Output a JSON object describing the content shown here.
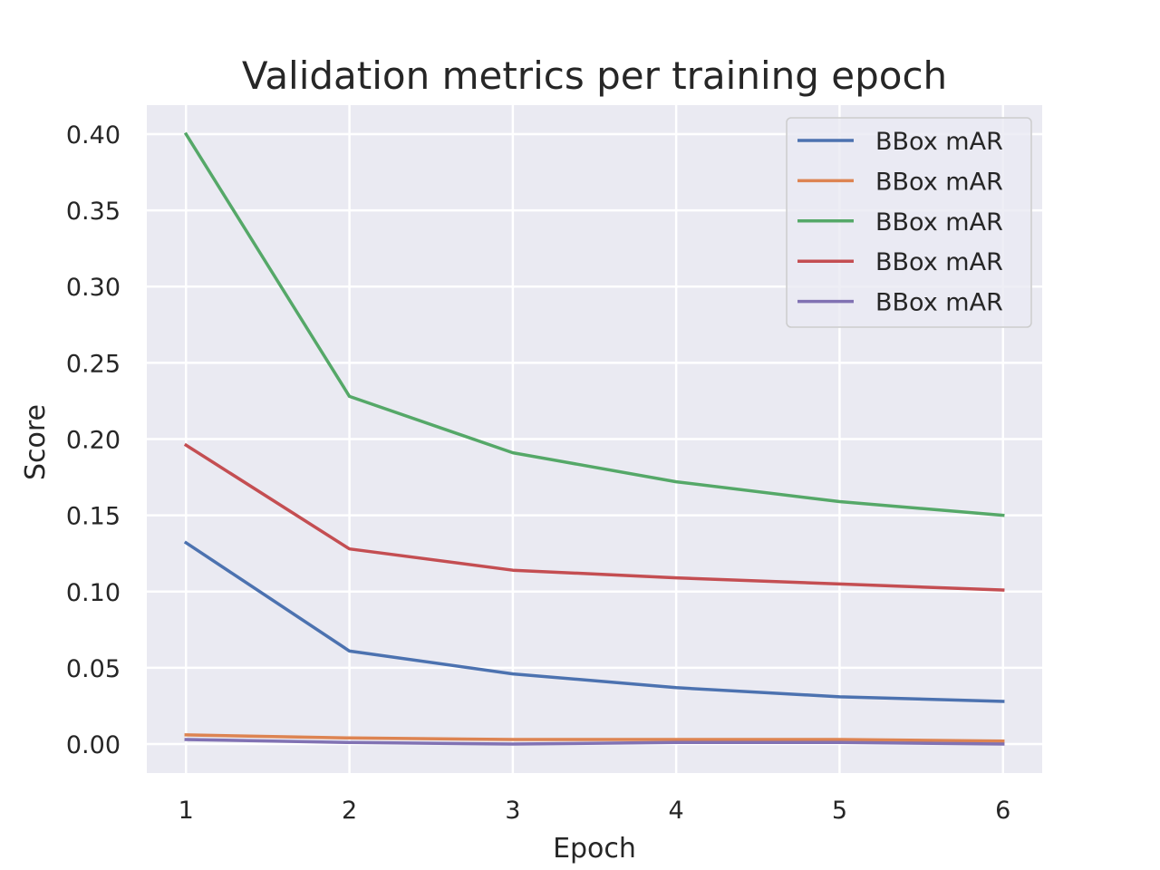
{
  "chart_data": {
    "type": "line",
    "title": "Validation metrics per training epoch",
    "xlabel": "Epoch",
    "ylabel": "Score",
    "x": [
      1,
      2,
      3,
      4,
      5,
      6
    ],
    "xlim": [
      0.76,
      6.24
    ],
    "ylim": [
      -0.019,
      0.419
    ],
    "xticks": [
      1,
      2,
      3,
      4,
      5,
      6
    ],
    "yticks": [
      0.0,
      0.05,
      0.1,
      0.15,
      0.2,
      0.25,
      0.3,
      0.35,
      0.4
    ],
    "ytick_labels": [
      "0.00",
      "0.05",
      "0.10",
      "0.15",
      "0.20",
      "0.25",
      "0.30",
      "0.35",
      "0.40"
    ],
    "grid": true,
    "legend_position": "top-right",
    "background_color": "#eaeaf2",
    "series": [
      {
        "name": "BBox mAR",
        "color": "#4c72b0",
        "values": [
          0.132,
          0.061,
          0.046,
          0.037,
          0.031,
          0.028
        ]
      },
      {
        "name": "BBox mAR",
        "color": "#dd8452",
        "values": [
          0.006,
          0.004,
          0.003,
          0.003,
          0.003,
          0.002
        ]
      },
      {
        "name": "BBox mAR",
        "color": "#55a868",
        "values": [
          0.4,
          0.228,
          0.191,
          0.172,
          0.159,
          0.15
        ]
      },
      {
        "name": "BBox mAR",
        "color": "#c44e52",
        "values": [
          0.196,
          0.128,
          0.114,
          0.109,
          0.105,
          0.101
        ]
      },
      {
        "name": "BBox mAR",
        "color": "#8172b3",
        "values": [
          0.003,
          0.001,
          0.0,
          0.001,
          0.001,
          0.0
        ]
      }
    ]
  }
}
